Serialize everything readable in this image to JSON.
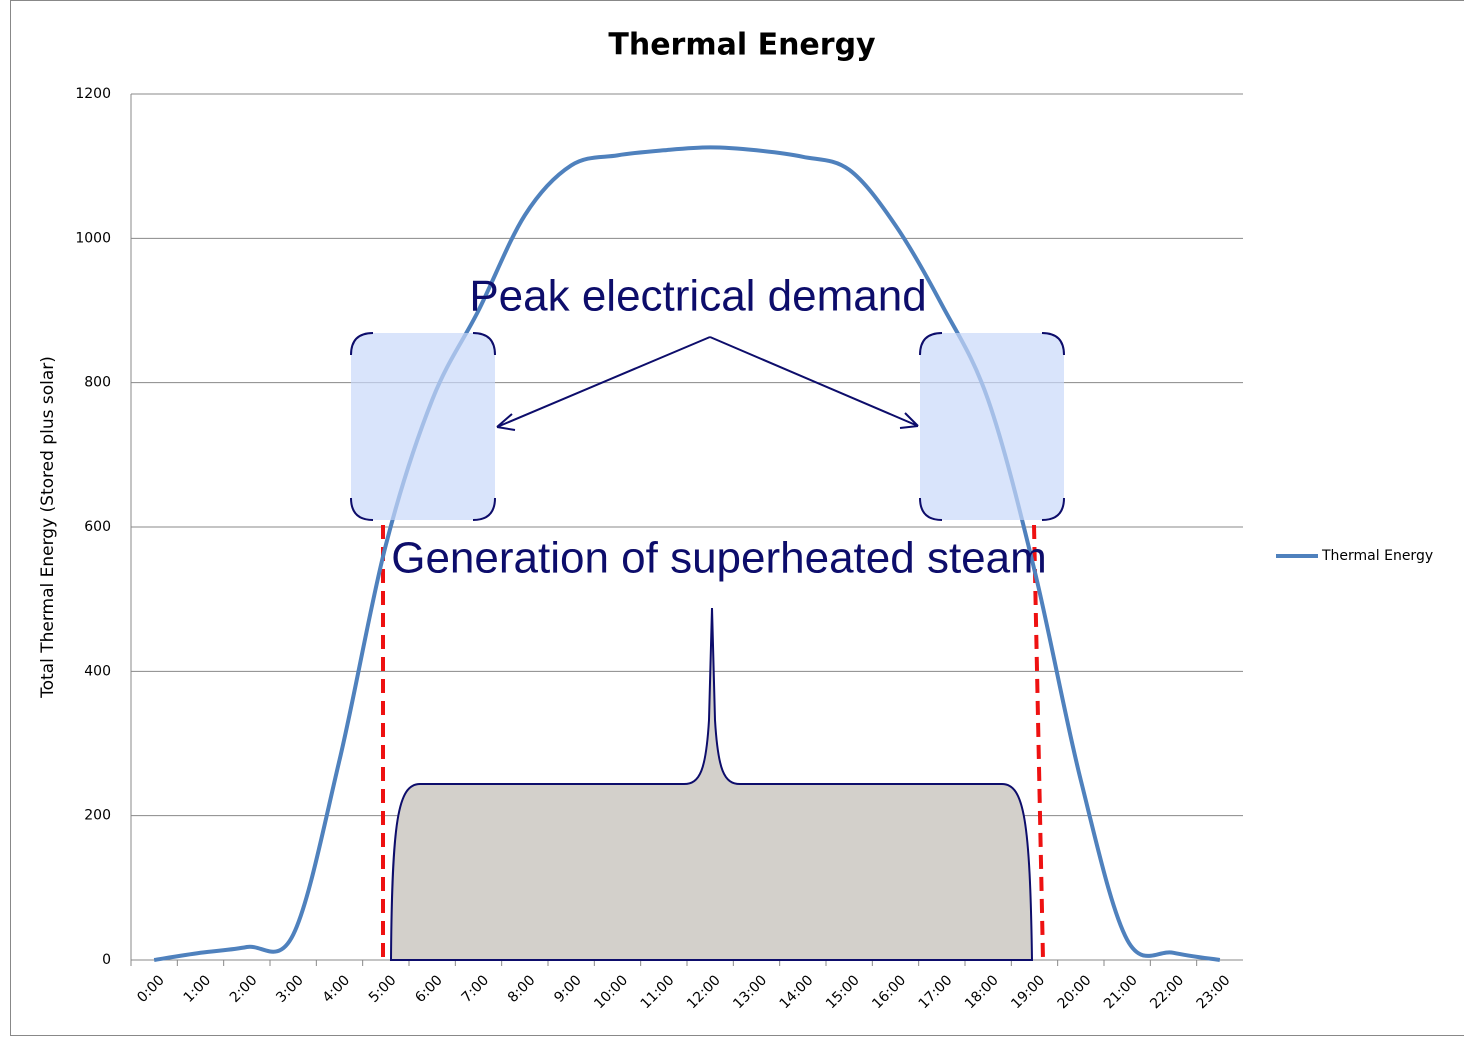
{
  "chart_data": {
    "type": "line",
    "title": "Thermal Energy",
    "ylabel": "Total Thermal Energy (Stored plus solar)",
    "annotations": [
      "Peak electrical demand",
      "Generation of superheated steam"
    ],
    "categories": [
      "0:00",
      "1:00",
      "2:00",
      "3:00",
      "4:00",
      "5:00",
      "6:00",
      "7:00",
      "8:00",
      "9:00",
      "10:00",
      "11:00",
      "12:00",
      "13:00",
      "14:00",
      "15:00",
      "16:00",
      "17:00",
      "18:00",
      "19:00",
      "20:00",
      "21:00",
      "22:00",
      "23:00"
    ],
    "series": [
      {
        "name": "Thermal Energy",
        "color": "#4f81bd",
        "values": [
          0,
          10,
          18,
          35,
          277,
          575,
          776,
          900,
          1032,
          1101,
          1115,
          1122,
          1126,
          1122,
          1113,
          1095,
          1018,
          908,
          776,
          540,
          249,
          28,
          10,
          0
        ]
      }
    ],
    "ylim": [
      0,
      1200
    ],
    "yticks": [
      0,
      200,
      400,
      600,
      800,
      1000,
      1200
    ],
    "grid": true,
    "legend": "right"
  }
}
